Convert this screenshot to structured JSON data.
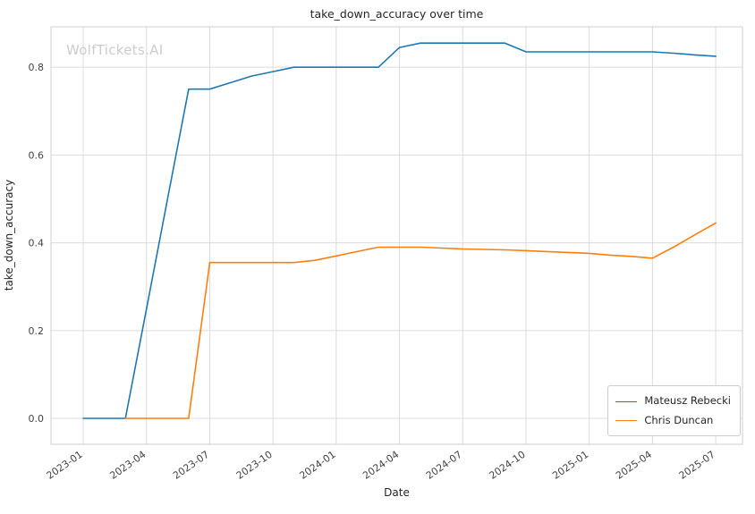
{
  "chart_data": {
    "type": "line",
    "title": "take_down_accuracy over time",
    "xlabel": "Date",
    "ylabel": "take_down_accuracy",
    "watermark": "WolfTickets.AI",
    "grid": true,
    "legend_position": "lower right",
    "x_ticks": [
      "2023-01",
      "2023-04",
      "2023-07",
      "2023-10",
      "2024-01",
      "2024-04",
      "2024-07",
      "2024-10",
      "2025-01",
      "2025-04",
      "2025-07"
    ],
    "y_ticks": [
      0.0,
      0.2,
      0.4,
      0.6,
      0.8
    ],
    "ylim": [
      -0.059,
      0.892
    ],
    "series": [
      {
        "name": "Mateusz Rebecki",
        "color": "#1f77b4",
        "x": [
          "2023-01",
          "2023-02",
          "2023-03",
          "2023-04",
          "2023-05",
          "2023-06",
          "2023-07",
          "2023-08",
          "2023-09",
          "2023-10",
          "2023-11",
          "2023-12",
          "2024-01",
          "2024-02",
          "2024-03",
          "2024-04",
          "2024-05",
          "2024-06",
          "2024-07",
          "2024-08",
          "2024-09",
          "2024-10",
          "2024-11",
          "2024-12",
          "2025-01",
          "2025-02",
          "2025-03",
          "2025-04",
          "2025-05",
          "2025-06",
          "2025-07"
        ],
        "y": [
          0.0,
          0.0,
          0.0,
          0.25,
          0.5,
          0.75,
          0.75,
          0.765,
          0.78,
          0.79,
          0.8,
          0.8,
          0.8,
          0.8,
          0.8,
          0.845,
          0.855,
          0.855,
          0.855,
          0.855,
          0.855,
          0.835,
          0.835,
          0.835,
          0.835,
          0.835,
          0.835,
          0.835,
          0.832,
          0.828,
          0.825
        ]
      },
      {
        "name": "Chris Duncan",
        "color": "#ff7f0e",
        "x": [
          "2023-03",
          "2023-04",
          "2023-05",
          "2023-06",
          "2023-07",
          "2023-08",
          "2023-09",
          "2023-10",
          "2023-11",
          "2023-12",
          "2024-01",
          "2024-02",
          "2024-03",
          "2024-04",
          "2024-05",
          "2024-06",
          "2024-07",
          "2024-08",
          "2024-09",
          "2024-10",
          "2024-11",
          "2024-12",
          "2025-01",
          "2025-02",
          "2025-03",
          "2025-04",
          "2025-05",
          "2025-06",
          "2025-07"
        ],
        "y": [
          0.0,
          0.0,
          0.0,
          0.0,
          0.355,
          0.355,
          0.355,
          0.355,
          0.355,
          0.36,
          0.37,
          0.38,
          0.39,
          0.39,
          0.39,
          0.388,
          0.386,
          0.385,
          0.384,
          0.382,
          0.38,
          0.378,
          0.376,
          0.372,
          0.369,
          0.365,
          0.39,
          0.418,
          0.445
        ]
      }
    ]
  }
}
